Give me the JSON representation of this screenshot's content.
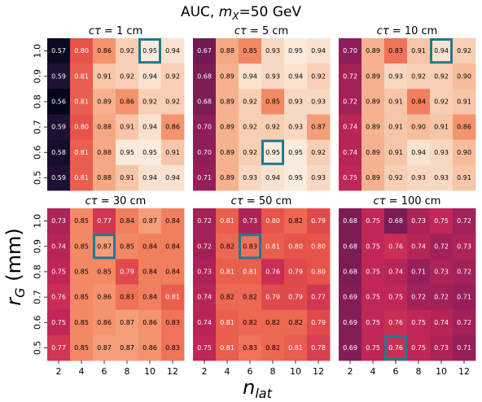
{
  "chart_data": {
    "type": "heatmap",
    "title": "AUC, m_X=50 GeV",
    "title_parts": {
      "prefix": "AUC, ",
      "var": "m",
      "sub": "X",
      "suffix": "=50 GeV"
    },
    "xlabel": {
      "var": "n",
      "sub": "lat"
    },
    "ylabel": {
      "var": "r",
      "sub": "G",
      "suffix": " (mm)"
    },
    "x": [
      2,
      4,
      6,
      8,
      10,
      12
    ],
    "y": [
      1.0,
      0.9,
      0.8,
      0.7,
      0.6,
      0.5
    ],
    "x_tick_labels": [
      "2",
      "4",
      "6",
      "8",
      "10",
      "12"
    ],
    "y_tick_labels": [
      "1.0",
      "0.9",
      "0.8",
      "0.7",
      "0.6",
      "0.5"
    ],
    "panels": [
      {
        "title": "cτ = 1 cm",
        "title_parts": {
          "var": "cτ",
          "value": " = 1 cm"
        },
        "values": [
          [
            0.57,
            0.8,
            0.86,
            0.92,
            0.95,
            0.94
          ],
          [
            0.59,
            0.81,
            0.91,
            0.92,
            0.94,
            0.92
          ],
          [
            0.56,
            0.81,
            0.89,
            0.86,
            0.92,
            0.92
          ],
          [
            0.59,
            0.8,
            0.88,
            0.91,
            0.94,
            0.86
          ],
          [
            0.58,
            0.81,
            0.88,
            0.95,
            0.95,
            0.91
          ],
          [
            0.59,
            0.81,
            0.88,
            0.91,
            0.94,
            0.94
          ]
        ],
        "highlight": [
          0,
          4
        ]
      },
      {
        "title": "cτ = 5 cm",
        "title_parts": {
          "var": "cτ",
          "value": " = 5 cm"
        },
        "values": [
          [
            0.67,
            0.88,
            0.85,
            0.93,
            0.95,
            0.94
          ],
          [
            0.68,
            0.89,
            0.94,
            0.93,
            0.94,
            0.92
          ],
          [
            0.68,
            0.89,
            0.92,
            0.85,
            0.93,
            0.93
          ],
          [
            0.7,
            0.89,
            0.92,
            0.92,
            0.93,
            0.87
          ],
          [
            0.7,
            0.89,
            0.92,
            0.95,
            0.95,
            0.92
          ],
          [
            0.71,
            0.89,
            0.93,
            0.94,
            0.95,
            0.93
          ]
        ],
        "highlight": [
          4,
          3
        ]
      },
      {
        "title": "cτ = 10 cm",
        "title_parts": {
          "var": "cτ",
          "value": " = 10 cm"
        },
        "values": [
          [
            0.7,
            0.89,
            0.83,
            0.91,
            0.94,
            0.92
          ],
          [
            0.72,
            0.89,
            0.93,
            0.92,
            0.92,
            0.9
          ],
          [
            0.72,
            0.89,
            0.91,
            0.84,
            0.92,
            0.91
          ],
          [
            0.74,
            0.89,
            0.91,
            0.9,
            0.91,
            0.86
          ],
          [
            0.74,
            0.89,
            0.91,
            0.94,
            0.93,
            0.9
          ],
          [
            0.75,
            0.89,
            0.92,
            0.93,
            0.93,
            0.91
          ]
        ],
        "highlight": [
          0,
          4
        ]
      },
      {
        "title": "cτ = 30 cm",
        "title_parts": {
          "var": "cτ",
          "value": " = 30 cm"
        },
        "values": [
          [
            0.73,
            0.85,
            0.77,
            0.84,
            0.87,
            0.84
          ],
          [
            0.74,
            0.85,
            0.87,
            0.85,
            0.84,
            0.84
          ],
          [
            0.75,
            0.85,
            0.85,
            0.79,
            0.84,
            0.84
          ],
          [
            0.76,
            0.85,
            0.86,
            0.83,
            0.84,
            0.81
          ],
          [
            0.75,
            0.85,
            0.86,
            0.87,
            0.86,
            0.83
          ],
          [
            0.77,
            0.85,
            0.87,
            0.87,
            0.86,
            0.83
          ]
        ],
        "highlight": [
          1,
          2
        ]
      },
      {
        "title": "cτ = 50 cm",
        "title_parts": {
          "var": "cτ",
          "value": " = 50 cm"
        },
        "values": [
          [
            0.72,
            0.81,
            0.73,
            0.8,
            0.82,
            0.79
          ],
          [
            0.72,
            0.82,
            0.83,
            0.81,
            0.8,
            0.8
          ],
          [
            0.73,
            0.81,
            0.81,
            0.76,
            0.79,
            0.8
          ],
          [
            0.74,
            0.82,
            0.82,
            0.79,
            0.79,
            0.77
          ],
          [
            0.74,
            0.81,
            0.82,
            0.82,
            0.82,
            0.79
          ],
          [
            0.75,
            0.81,
            0.83,
            0.82,
            0.81,
            0.78
          ]
        ],
        "highlight": [
          1,
          2
        ]
      },
      {
        "title": "cτ = 100 cm",
        "title_parts": {
          "var": "cτ",
          "value": " = 100 cm"
        },
        "values": [
          [
            0.68,
            0.75,
            0.68,
            0.73,
            0.75,
            0.72
          ],
          [
            0.68,
            0.75,
            0.76,
            0.74,
            0.72,
            0.73
          ],
          [
            0.68,
            0.75,
            0.74,
            0.71,
            0.73,
            0.72
          ],
          [
            0.69,
            0.75,
            0.75,
            0.72,
            0.72,
            0.71
          ],
          [
            0.69,
            0.75,
            0.76,
            0.75,
            0.74,
            0.72
          ],
          [
            0.69,
            0.75,
            0.76,
            0.75,
            0.73,
            0.71
          ]
        ],
        "highlight": [
          5,
          2
        ]
      }
    ],
    "colormap": "rocket",
    "vlim": [
      0.56,
      0.95
    ],
    "highlight_color": "#1f7a8c",
    "grid": false,
    "legend": "none"
  }
}
